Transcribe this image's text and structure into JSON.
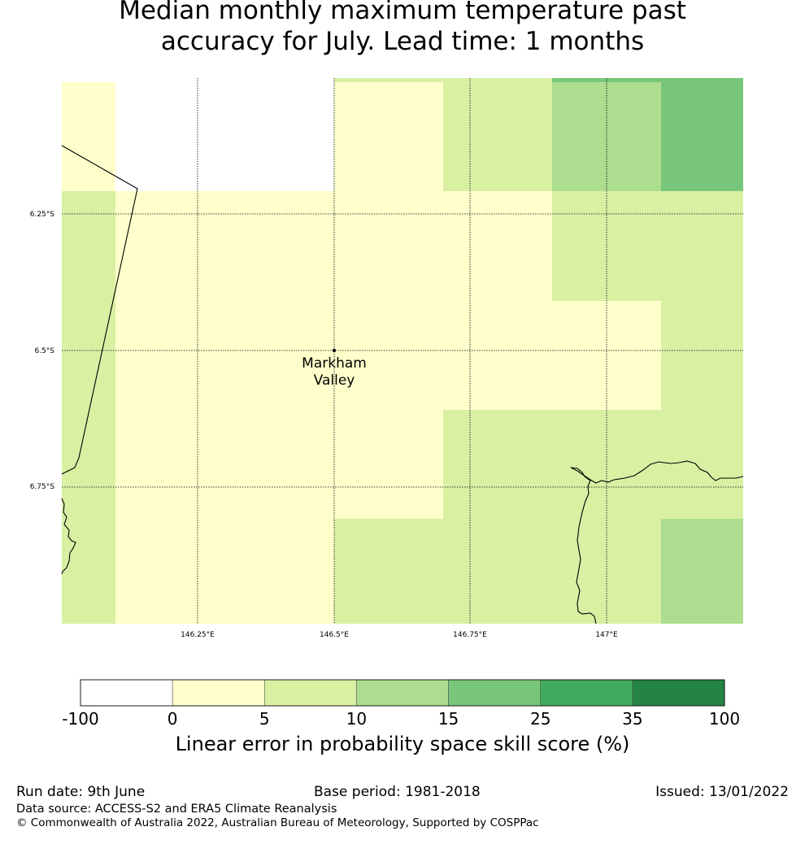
{
  "title_line1": "Median monthly maximum temperature past",
  "title_line2": "accuracy for July. Lead time: 1 months",
  "map": {
    "place_label_line1": "Markham",
    "place_label_line2": "Valley",
    "lat_labels": [
      "6.25°S",
      "6.5°S",
      "6.75°S"
    ],
    "lon_labels": [
      "146.25°E",
      "146.5°E",
      "146.75°E",
      "147°E"
    ]
  },
  "colorbar": {
    "ticks": [
      "-100",
      "0",
      "5",
      "10",
      "15",
      "25",
      "35",
      "100"
    ],
    "colors": [
      "#ffffff",
      "#ffffcc",
      "#d9f0a3",
      "#addd8e",
      "#78c679",
      "#41ab5d",
      "#238443"
    ],
    "label": "Linear error in probability space skill score (%)"
  },
  "footer": {
    "run_date": "Run date: 9th June",
    "base_period": "Base period: 1981-2018",
    "issued": "Issued: 13/01/2022",
    "data_source": "Data source: ACCESS-S2 and ERA5 Climate Reanalysis",
    "copyright": "© Commonwealth of Australia 2022, Australian Bureau of Meteorology, Supported by COSPPac"
  }
}
